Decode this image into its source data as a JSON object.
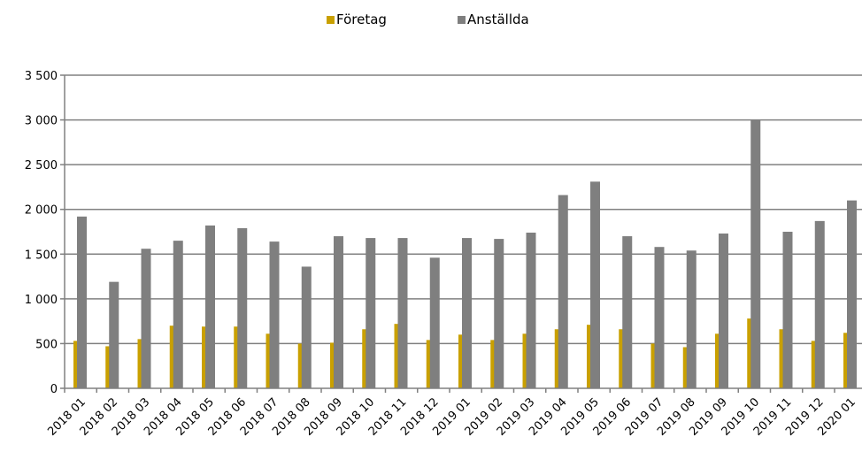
{
  "chart_data": {
    "type": "bar",
    "categories": [
      "2018 01",
      "2018 02",
      "2018 03",
      "2018 04",
      "2018 05",
      "2018 06",
      "2018 07",
      "2018 08",
      "2018 09",
      "2018 10",
      "2018 11",
      "2018 12",
      "2019 01",
      "2019 02",
      "2019 03",
      "2019 04",
      "2019 05",
      "2019 06",
      "2019 07",
      "2019 08",
      "2019 09",
      "2019 10",
      "2019 11",
      "2019 12",
      "2020 01"
    ],
    "series": [
      {
        "name": "Företag",
        "color": "#c9a000",
        "values": [
          530,
          470,
          550,
          700,
          690,
          690,
          610,
          500,
          510,
          660,
          720,
          540,
          600,
          540,
          610,
          660,
          710,
          660,
          500,
          460,
          610,
          780,
          660,
          530,
          620
        ]
      },
      {
        "name": "Anställda",
        "color": "#7f7f7f",
        "values": [
          1920,
          1190,
          1560,
          1650,
          1820,
          1790,
          1640,
          1360,
          1700,
          1680,
          1680,
          1460,
          1680,
          1670,
          1740,
          2160,
          2310,
          1700,
          1580,
          1540,
          1730,
          3000,
          1750,
          1870,
          2100
        ]
      }
    ],
    "ylim": [
      0,
      3500
    ],
    "yticks": [
      0,
      500,
      1000,
      1500,
      2000,
      2500,
      3000,
      3500
    ],
    "ytick_labels": [
      "0",
      "500",
      "1 000",
      "1 500",
      "2 000",
      "2 500",
      "3 000",
      "3 500"
    ],
    "grid": true,
    "legend_position": "top-center",
    "title": "",
    "xlabel": "",
    "ylabel": ""
  }
}
